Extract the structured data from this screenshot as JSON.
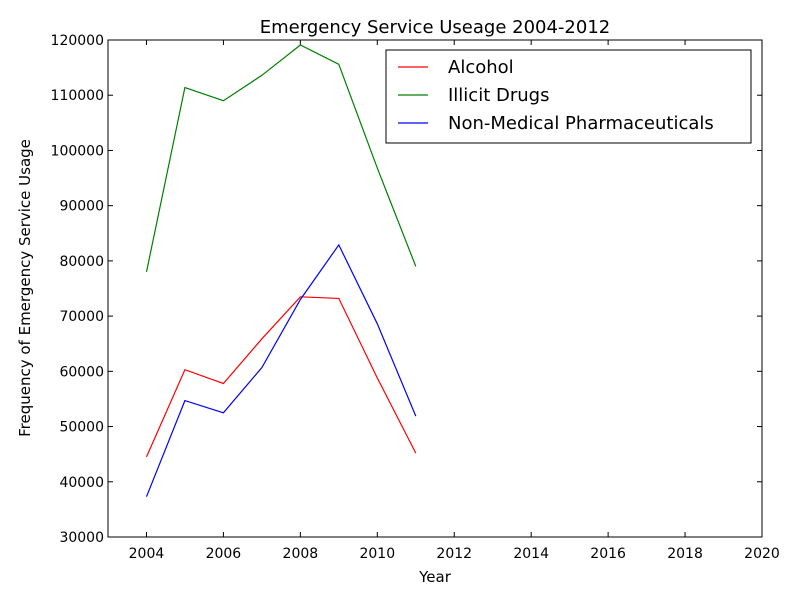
{
  "chart_data": {
    "type": "line",
    "title": "Emergency Service Useage 2004-2012",
    "xlabel": "Year",
    "ylabel": "Frequency of Emergency Service Usage",
    "xlim": [
      2003,
      2020
    ],
    "ylim": [
      30000,
      120000
    ],
    "x_ticks": [
      2004,
      2006,
      2008,
      2010,
      2012,
      2014,
      2016,
      2018,
      2020
    ],
    "y_ticks": [
      30000,
      40000,
      50000,
      60000,
      70000,
      80000,
      90000,
      100000,
      110000,
      120000
    ],
    "x": [
      2004,
      2005,
      2006,
      2007,
      2008,
      2009,
      2010,
      2011
    ],
    "legend_position": "top-right",
    "grid": false,
    "series": [
      {
        "name": "Alcohol",
        "color": "#ff0000",
        "values": [
          44500,
          60300,
          57800,
          65900,
          73500,
          73200,
          58800,
          45200
        ]
      },
      {
        "name": "Illicit Drugs",
        "color": "#008000",
        "values": [
          78000,
          111400,
          109000,
          113600,
          119100,
          115600,
          96800,
          79000
        ]
      },
      {
        "name": "Non-Medical Pharmaceuticals",
        "color": "#0000ff",
        "values": [
          37300,
          54700,
          52500,
          60700,
          73000,
          82900,
          68600,
          51900
        ]
      }
    ]
  }
}
